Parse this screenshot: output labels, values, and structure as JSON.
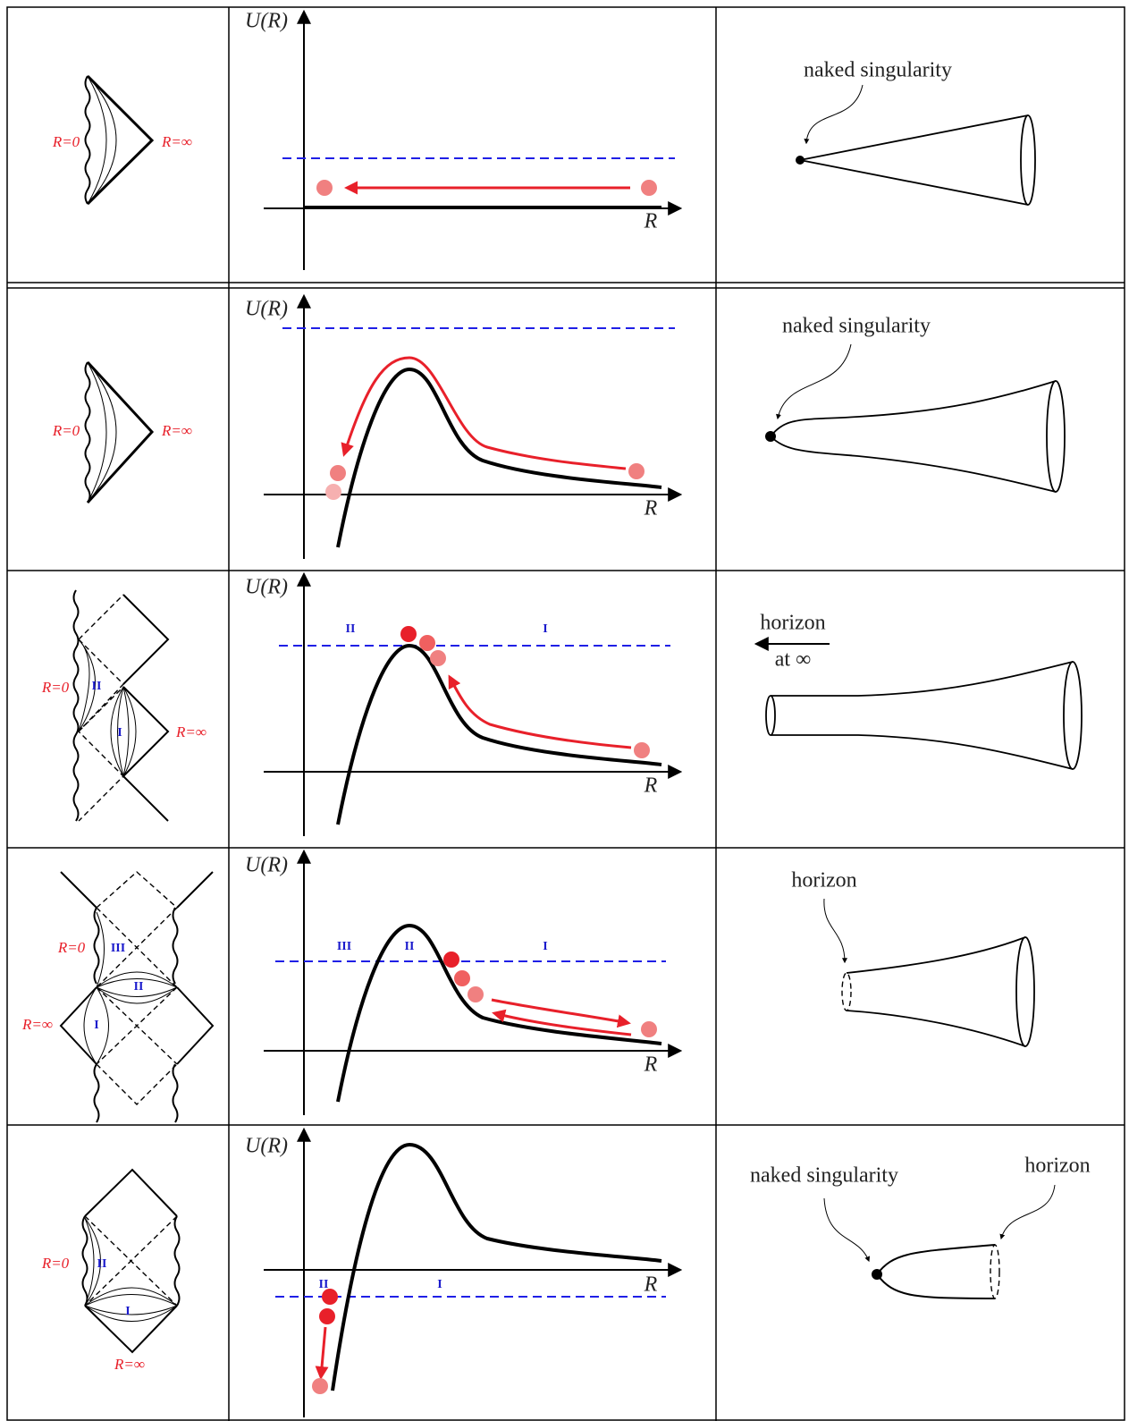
{
  "rows": [
    {
      "penrose": {
        "labels": [
          "R=0",
          "R=∞"
        ]
      },
      "plot": {
        "y_label": "U(R)",
        "x_label": "R"
      },
      "embedding": {
        "labels": [
          "naked singularity"
        ]
      }
    },
    {
      "penrose": {
        "labels": [
          "R=0",
          "R=∞"
        ]
      },
      "plot": {
        "y_label": "U(R)",
        "x_label": "R"
      },
      "embedding": {
        "labels": [
          "naked singularity"
        ]
      }
    },
    {
      "penrose": {
        "labels": [
          "R=0",
          "II",
          "I",
          "R=∞"
        ]
      },
      "plot": {
        "y_label": "U(R)",
        "x_label": "R",
        "regions": [
          "II",
          "I"
        ]
      },
      "embedding": {
        "labels": [
          "horizon",
          "at ∞"
        ]
      }
    },
    {
      "penrose": {
        "labels": [
          "R=0",
          "III",
          "II",
          "I",
          "R=∞"
        ]
      },
      "plot": {
        "y_label": "U(R)",
        "x_label": "R",
        "regions": [
          "III",
          "II",
          "I"
        ]
      },
      "embedding": {
        "labels": [
          "horizon"
        ]
      }
    },
    {
      "penrose": {
        "labels": [
          "R=0",
          "II",
          "I",
          "R=∞"
        ]
      },
      "plot": {
        "y_label": "U(R)",
        "x_label": "R",
        "regions": [
          "II",
          "I"
        ]
      },
      "embedding": {
        "labels": [
          "naked singularity",
          "horizon"
        ]
      }
    }
  ]
}
